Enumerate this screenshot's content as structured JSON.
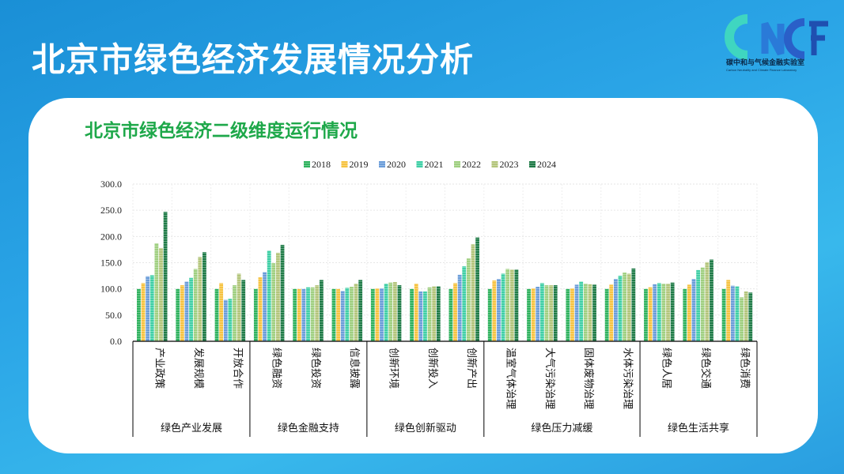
{
  "header": {
    "title": "北京市绿色经济发展情况分析"
  },
  "logo": {
    "mark": "CNCF",
    "name": "碳中和与气候金融实验室",
    "english": "Carbon Neutrality and Climate Finance Laboratory"
  },
  "card": {
    "subtitle": "北京市绿色经济二级维度运行情况"
  },
  "chart_data": {
    "type": "bar",
    "title": "",
    "ylim": [
      0,
      300
    ],
    "yticks": [
      "0.0",
      "50.0",
      "100.0",
      "150.0",
      "200.0",
      "250.0",
      "300.0"
    ],
    "grid": true,
    "legend_position": "top",
    "categories": [
      "产业政策",
      "发展规模",
      "开放合作",
      "绿色融资",
      "绿色投资",
      "信息披露",
      "创新环境",
      "创新投入",
      "创新产出",
      "温室气体治理",
      "大气污染治理",
      "固体废物治理",
      "水体污染治理",
      "绿色人居",
      "绿色交通",
      "绿色消费"
    ],
    "groups": [
      {
        "name": "绿色产业发展",
        "count": 3
      },
      {
        "name": "绿色金融支持",
        "count": 3
      },
      {
        "name": "绿色创新驱动",
        "count": 3
      },
      {
        "name": "绿色压力减缓",
        "count": 4
      },
      {
        "name": "绿色生活共享",
        "count": 3
      }
    ],
    "series": [
      {
        "name": "2018",
        "color": "#2fb25e",
        "values": [
          100,
          100,
          100,
          100,
          100,
          100,
          100,
          100,
          100,
          100,
          100,
          100,
          100,
          100,
          100,
          100
        ]
      },
      {
        "name": "2019",
        "color": "#f6c341",
        "values": [
          111,
          107,
          111,
          122,
          100,
          100,
          101,
          110,
          111,
          116,
          101,
          101,
          108,
          103,
          108,
          117
        ]
      },
      {
        "name": "2020",
        "color": "#6b9dd9",
        "values": [
          124,
          114,
          79,
          132,
          100,
          96,
          101,
          95,
          127,
          119,
          104,
          108,
          119,
          109,
          119,
          106
        ]
      },
      {
        "name": "2021",
        "color": "#40cfa6",
        "values": [
          126,
          121,
          81,
          173,
          103,
          102,
          110,
          95,
          143,
          129,
          111,
          114,
          125,
          111,
          136,
          105
        ]
      },
      {
        "name": "2022",
        "color": "#9fcf80",
        "values": [
          187,
          138,
          107,
          149,
          103,
          104,
          112,
          103,
          158,
          138,
          107,
          110,
          131,
          110,
          141,
          84
        ]
      },
      {
        "name": "2023",
        "color": "#b3c57b",
        "values": [
          178,
          161,
          129,
          169,
          107,
          110,
          113,
          105,
          185,
          137,
          107,
          109,
          129,
          110,
          151,
          95
        ]
      },
      {
        "name": "2024",
        "color": "#1f7b47",
        "values": [
          247,
          170,
          117,
          184,
          117,
          117,
          107,
          105,
          198,
          137,
          107,
          108,
          139,
          112,
          156,
          93
        ]
      }
    ]
  }
}
